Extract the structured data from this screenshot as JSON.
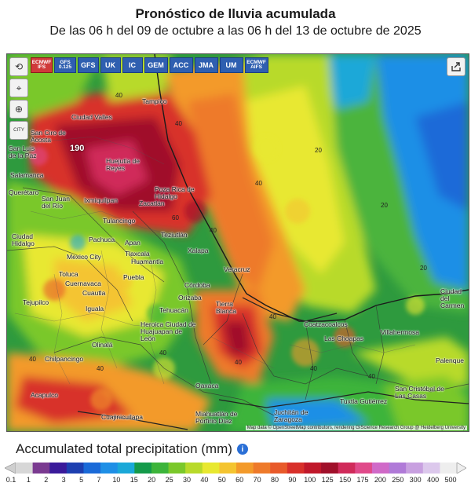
{
  "header": {
    "title": "Pronóstico de lluvia acumulada",
    "subtitle": "De las 06 h del 09 de octubre a las 06 h del 13 de octubre de 2025"
  },
  "models": [
    {
      "label": "ECMWF\nIFS",
      "active": true
    },
    {
      "label": "GFS\n0.125",
      "active": false
    },
    {
      "label": "GFS",
      "active": false
    },
    {
      "label": "UK",
      "active": false
    },
    {
      "label": "IC",
      "active": false
    },
    {
      "label": "GEM",
      "active": false
    },
    {
      "label": "ACC",
      "active": false
    },
    {
      "label": "JMA",
      "active": false
    },
    {
      "label": "UM",
      "active": false
    },
    {
      "label": "ECMWF\nAIFS",
      "active": false
    }
  ],
  "tools": {
    "refresh": "⟲",
    "locate": "⌖",
    "zoom": "⊕",
    "city": "CITY"
  },
  "cities": [
    "Tampico",
    "Ciudad Valles",
    "San Ciro de Acosta",
    "San Luis de la Paz",
    "Huejutla de Reyes",
    "Poza Rica de Hidalgo",
    "Querétaro",
    "San Juan del Río",
    "Ixmiquilpan",
    "Tulancingo",
    "Teziutlán",
    "Ciudad Hidalgo",
    "Mexico City",
    "Huamantla",
    "Xalapa",
    "Veracruz",
    "Toluca",
    "Cuernavaca",
    "Puebla",
    "Córdoba",
    "Orizaba",
    "Tehuacán",
    "Tierra Blanca",
    "Heroica Ciudad de Huajuapan de León",
    "Coatzacoalcos",
    "Las Choapas",
    "Villahermosa",
    "Ciudad del Carmen",
    "Chilpancingo",
    "Olinalá",
    "Acapulco",
    "Oaxaca",
    "Tuxtla Gutiérrez",
    "San Cristóbal de Las Casas",
    "Juchitán de Zaragoza",
    "Miahuatlán de Porfirio Díaz",
    "Palenque",
    "Cuajinicuilapa",
    "Tejupilco",
    "Iguala",
    "Cuautla",
    "Tlaxcala",
    "Zacatlán",
    "Pachuca",
    "Salamanca",
    "Apan"
  ],
  "max_value_label": "190",
  "contour_labels": [
    "40",
    "40",
    "40",
    "20",
    "20",
    "40",
    "40",
    "60",
    "20",
    "40",
    "40",
    "40",
    "40",
    "40",
    "40"
  ],
  "attribution": "Map data © OpenStreetMap contributors, rendering GIScience Research Group @ Heidelberg University",
  "legend": {
    "title": "Accumulated total precipitation (mm)",
    "ticks": [
      "0.1",
      "1",
      "2",
      "3",
      "5",
      "7",
      "10",
      "15",
      "20",
      "25",
      "30",
      "40",
      "50",
      "60",
      "70",
      "80",
      "90",
      "100",
      "125",
      "150",
      "175",
      "200",
      "250",
      "300",
      "400",
      "500"
    ],
    "colors": [
      "#d7d7d7",
      "#7a3a90",
      "#3a1a9a",
      "#1d3fb0",
      "#1a6ad8",
      "#1e8fe6",
      "#1aa8d8",
      "#149a4a",
      "#3cb43a",
      "#7ac82a",
      "#b8da2a",
      "#e8e830",
      "#f4c430",
      "#f39a2a",
      "#ee7a2a",
      "#e85a2a",
      "#d8302a",
      "#c0182a",
      "#a0102a",
      "#d02a5a",
      "#e04a8a",
      "#d06ac8",
      "#b07ad8",
      "#c8a0e0",
      "#dcc8ec",
      "#eeeeee"
    ]
  }
}
